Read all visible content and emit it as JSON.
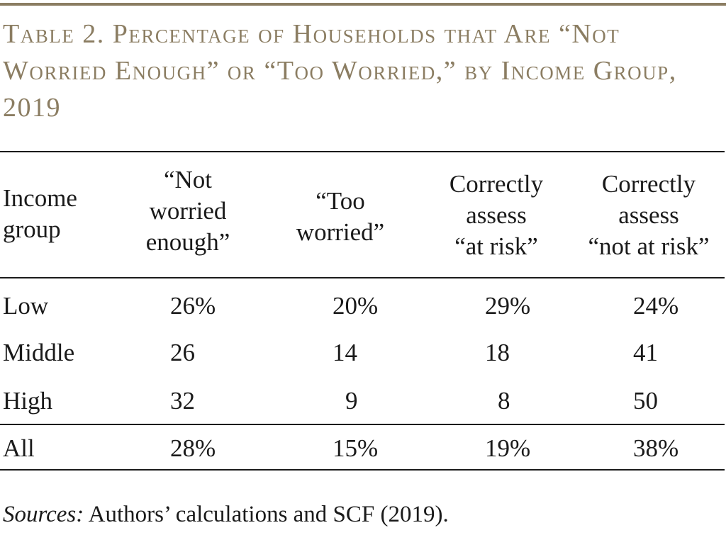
{
  "table": {
    "title": "Table 2. Percentage of Households that Are “Not Worried Enough” or “Too Worried,” by Income Group, 2019",
    "title_color": "#8b7d62",
    "headers": [
      "Income\ngroup",
      "“Not\nworried\nenough”",
      "“Too\nworried”",
      "Correctly\nassess\n“at risk”",
      "Correctly\nassess\n“not at risk”"
    ],
    "rows": [
      {
        "label": "Low",
        "values": [
          "26%",
          "20%",
          "29%",
          "24%"
        ]
      },
      {
        "label": "Middle",
        "values": [
          "26",
          "14",
          "18",
          "41"
        ]
      },
      {
        "label": "High",
        "values": [
          "32",
          "9",
          "8",
          "50"
        ]
      },
      {
        "label": "All",
        "values": [
          "28%",
          "15%",
          "19%",
          "38%"
        ]
      }
    ]
  },
  "sources": {
    "label": "Sources:",
    "text": " Authors’ calculations and SCF (2019)."
  }
}
